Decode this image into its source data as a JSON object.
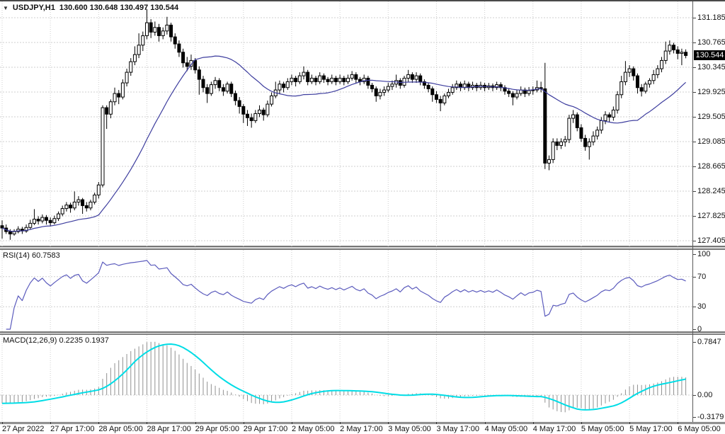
{
  "window": {
    "symbol_title": "USDJPY,H1",
    "ohlc_readout": "130.600 130.648 130.497 130.544"
  },
  "colors": {
    "background": "#ffffff",
    "grid": "#cfcfcf",
    "candle_outline": "#000000",
    "bull_fill": "#ffffff",
    "bear_fill": "#000000",
    "ma_line": "#3d3d9e",
    "rsi_line": "#5b5bbd",
    "macd_histogram": "#909090",
    "macd_signal": "#00dde6",
    "price_tag_bg": "#000000",
    "price_tag_text": "#ffffff",
    "axis_text": "#111111"
  },
  "chart_data": {
    "type": "candlestick",
    "symbol": "USDJPY",
    "timeframe": "H1",
    "last_bar": {
      "open": "130.600",
      "high": "130.648",
      "low": "130.497",
      "close": "130.544"
    },
    "price_tag": "130.544",
    "price_axis_labels": [
      "131.185",
      "130.765",
      "130.345",
      "129.925",
      "129.505",
      "129.085",
      "128.665",
      "128.245",
      "127.825",
      "127.405"
    ],
    "time_axis_labels": [
      {
        "i": 0,
        "label": "27 Apr 2022"
      },
      {
        "i": 12,
        "label": "27 Apr 17:00"
      },
      {
        "i": 24,
        "label": "28 Apr 05:00"
      },
      {
        "i": 36,
        "label": "28 Apr 17:00"
      },
      {
        "i": 48,
        "label": "29 Apr 05:00"
      },
      {
        "i": 60,
        "label": "29 Apr 17:00"
      },
      {
        "i": 72,
        "label": "2 May 05:00"
      },
      {
        "i": 84,
        "label": "2 May 17:00"
      },
      {
        "i": 96,
        "label": "3 May 05:00"
      },
      {
        "i": 108,
        "label": "3 May 17:00"
      },
      {
        "i": 120,
        "label": "4 May 05:00"
      },
      {
        "i": 132,
        "label": "4 May 17:00"
      },
      {
        "i": 144,
        "label": "5 May 05:00"
      },
      {
        "i": 156,
        "label": "5 May 17:00"
      },
      {
        "i": 168,
        "label": "6 May 05:00"
      }
    ],
    "ma": {
      "period": 24
    },
    "rsi": {
      "label": "RSI(14) 60.7583",
      "period": 14,
      "current": 60.7583,
      "axis_labels": [
        {
          "v": 100,
          "label": "100"
        },
        {
          "v": 70,
          "label": "70"
        },
        {
          "v": 30,
          "label": "30"
        },
        {
          "v": 0,
          "label": "0"
        }
      ],
      "level_lines": [
        70,
        30
      ]
    },
    "macd": {
      "label": "MACD(12,26,9) 0.2235 0.1937",
      "fast": 12,
      "slow": 26,
      "signal": 9,
      "current_macd": 0.2235,
      "current_signal": 0.1937,
      "axis_labels": [
        {
          "v": 0.7847,
          "label": "0.7847"
        },
        {
          "v": 0,
          "label": "0.00"
        },
        {
          "v": -0.3179,
          "label": "-0.3179"
        }
      ]
    },
    "candles": [
      [
        127.66,
        127.75,
        127.44,
        127.62
      ],
      [
        127.62,
        127.68,
        127.52,
        127.56
      ],
      [
        127.56,
        127.6,
        127.42,
        127.52
      ],
      [
        127.52,
        127.6,
        127.49,
        127.56
      ],
      [
        127.56,
        127.65,
        127.53,
        127.6
      ],
      [
        127.6,
        127.64,
        127.52,
        127.57
      ],
      [
        127.57,
        127.68,
        127.54,
        127.63
      ],
      [
        127.63,
        127.76,
        127.6,
        127.7
      ],
      [
        127.7,
        127.94,
        127.67,
        127.77
      ],
      [
        127.77,
        127.82,
        127.68,
        127.74
      ],
      [
        127.74,
        127.85,
        127.7,
        127.8
      ],
      [
        127.8,
        127.84,
        127.68,
        127.75
      ],
      [
        127.75,
        127.8,
        127.65,
        127.71
      ],
      [
        127.71,
        127.83,
        127.68,
        127.78
      ],
      [
        127.78,
        127.9,
        127.74,
        127.86
      ],
      [
        127.86,
        128.0,
        127.82,
        127.95
      ],
      [
        127.95,
        128.06,
        127.9,
        128.01
      ],
      [
        128.01,
        128.05,
        127.88,
        127.96
      ],
      [
        127.96,
        128.24,
        127.92,
        128.06
      ],
      [
        128.06,
        128.16,
        128.0,
        128.1
      ],
      [
        128.1,
        128.13,
        127.86,
        128.0
      ],
      [
        128.0,
        128.06,
        127.9,
        127.96
      ],
      [
        127.96,
        128.1,
        127.92,
        128.06
      ],
      [
        128.06,
        128.22,
        128.02,
        128.18
      ],
      [
        128.18,
        128.4,
        128.12,
        128.35
      ],
      [
        128.35,
        129.7,
        128.31,
        129.66
      ],
      [
        129.66,
        129.7,
        129.3,
        129.55
      ],
      [
        129.55,
        129.8,
        129.48,
        129.76
      ],
      [
        129.76,
        130.0,
        129.7,
        129.9
      ],
      [
        129.9,
        129.96,
        129.72,
        129.84
      ],
      [
        129.84,
        130.14,
        129.8,
        130.08
      ],
      [
        130.08,
        130.32,
        130.02,
        130.26
      ],
      [
        130.26,
        130.5,
        130.2,
        130.44
      ],
      [
        130.44,
        130.7,
        130.38,
        130.56
      ],
      [
        130.56,
        130.92,
        130.5,
        130.72
      ],
      [
        130.72,
        130.95,
        130.62,
        130.88
      ],
      [
        130.88,
        131.33,
        130.82,
        131.1
      ],
      [
        131.1,
        131.16,
        130.84,
        130.94
      ],
      [
        130.94,
        131.12,
        130.88,
        131.02
      ],
      [
        131.02,
        131.08,
        130.78,
        130.88
      ],
      [
        130.88,
        131.02,
        130.82,
        130.96
      ],
      [
        130.96,
        131.2,
        130.9,
        131.06
      ],
      [
        131.06,
        131.1,
        130.78,
        130.86
      ],
      [
        130.86,
        130.92,
        130.66,
        130.74
      ],
      [
        130.74,
        130.8,
        130.52,
        130.6
      ],
      [
        130.6,
        130.66,
        130.34,
        130.42
      ],
      [
        130.42,
        130.52,
        130.28,
        130.36
      ],
      [
        130.36,
        130.56,
        130.3,
        130.46
      ],
      [
        130.46,
        130.5,
        130.24,
        130.3
      ],
      [
        130.3,
        130.36,
        129.88,
        130.14
      ],
      [
        130.14,
        130.2,
        129.92,
        130.0
      ],
      [
        130.0,
        130.06,
        129.74,
        129.9
      ],
      [
        129.9,
        130.1,
        129.86,
        130.05
      ],
      [
        130.05,
        130.18,
        129.98,
        130.12
      ],
      [
        130.12,
        130.16,
        129.94,
        130.0
      ],
      [
        130.0,
        130.06,
        129.86,
        129.94
      ],
      [
        129.94,
        130.1,
        129.9,
        130.06
      ],
      [
        130.06,
        130.1,
        129.84,
        129.9
      ],
      [
        129.9,
        129.95,
        129.7,
        129.78
      ],
      [
        129.78,
        129.84,
        129.56,
        129.68
      ],
      [
        129.68,
        129.72,
        129.4,
        129.55
      ],
      [
        129.55,
        129.62,
        129.35,
        129.49
      ],
      [
        129.49,
        129.56,
        129.32,
        129.44
      ],
      [
        129.44,
        129.62,
        129.4,
        129.56
      ],
      [
        129.56,
        129.7,
        129.5,
        129.62
      ],
      [
        129.62,
        129.66,
        129.44,
        129.54
      ],
      [
        129.54,
        129.78,
        129.5,
        129.72
      ],
      [
        129.72,
        129.92,
        129.68,
        129.86
      ],
      [
        129.86,
        130.1,
        129.82,
        129.96
      ],
      [
        129.96,
        130.12,
        129.9,
        130.06
      ],
      [
        130.06,
        130.1,
        129.92,
        130.0
      ],
      [
        130.0,
        130.16,
        129.96,
        130.1
      ],
      [
        130.1,
        130.22,
        130.04,
        130.16
      ],
      [
        130.16,
        130.2,
        130.02,
        130.1
      ],
      [
        130.1,
        130.26,
        130.06,
        130.2
      ],
      [
        130.2,
        130.36,
        130.14,
        130.26
      ],
      [
        130.26,
        130.3,
        130.04,
        130.1
      ],
      [
        130.1,
        130.22,
        130.06,
        130.16
      ],
      [
        130.16,
        130.2,
        130.04,
        130.1
      ],
      [
        130.1,
        130.26,
        130.06,
        130.2
      ],
      [
        130.2,
        130.24,
        130.08,
        130.14
      ],
      [
        130.14,
        130.18,
        130.04,
        130.1
      ],
      [
        130.1,
        130.22,
        130.06,
        130.16
      ],
      [
        130.16,
        130.2,
        130.04,
        130.1
      ],
      [
        130.1,
        130.22,
        130.06,
        130.16
      ],
      [
        130.16,
        130.2,
        130.04,
        130.1
      ],
      [
        130.1,
        130.22,
        130.06,
        130.16
      ],
      [
        130.16,
        130.28,
        130.12,
        130.22
      ],
      [
        130.22,
        130.26,
        130.08,
        130.14
      ],
      [
        130.14,
        130.18,
        130.04,
        130.1
      ],
      [
        130.1,
        130.22,
        130.06,
        130.16
      ],
      [
        130.16,
        130.2,
        129.98,
        130.04
      ],
      [
        130.04,
        130.08,
        129.92,
        129.98
      ],
      [
        129.98,
        130.02,
        129.76,
        129.86
      ],
      [
        129.86,
        129.98,
        129.8,
        129.92
      ],
      [
        129.92,
        130.02,
        129.86,
        129.96
      ],
      [
        129.96,
        130.08,
        129.92,
        130.02
      ],
      [
        130.02,
        130.12,
        129.96,
        130.06
      ],
      [
        130.06,
        130.22,
        130.0,
        130.12
      ],
      [
        130.12,
        130.16,
        129.98,
        130.04
      ],
      [
        130.04,
        130.2,
        130.0,
        130.16
      ],
      [
        130.16,
        130.3,
        130.1,
        130.22
      ],
      [
        130.22,
        130.26,
        130.08,
        130.14
      ],
      [
        130.14,
        130.26,
        130.08,
        130.2
      ],
      [
        130.2,
        130.24,
        130.04,
        130.1
      ],
      [
        130.1,
        130.14,
        129.98,
        130.04
      ],
      [
        130.04,
        130.08,
        129.92,
        129.98
      ],
      [
        129.98,
        130.02,
        129.76,
        129.88
      ],
      [
        129.88,
        129.94,
        129.74,
        129.8
      ],
      [
        129.8,
        129.86,
        129.6,
        129.74
      ],
      [
        129.74,
        129.9,
        129.7,
        129.86
      ],
      [
        129.86,
        129.98,
        129.82,
        129.92
      ],
      [
        129.92,
        130.06,
        129.88,
        130.0
      ],
      [
        130.0,
        130.12,
        129.96,
        130.06
      ],
      [
        130.06,
        130.1,
        129.94,
        130.0
      ],
      [
        130.0,
        130.12,
        129.96,
        130.06
      ],
      [
        130.06,
        130.1,
        129.94,
        130.0
      ],
      [
        130.0,
        130.1,
        129.96,
        130.04
      ],
      [
        130.04,
        130.08,
        129.94,
        130.0
      ],
      [
        130.0,
        130.1,
        129.96,
        130.04
      ],
      [
        130.04,
        130.08,
        129.94,
        130.0
      ],
      [
        130.0,
        130.08,
        129.96,
        130.03
      ],
      [
        130.03,
        130.07,
        129.94,
        130.0
      ],
      [
        130.0,
        130.1,
        129.96,
        130.05
      ],
      [
        130.05,
        130.09,
        129.94,
        130.0
      ],
      [
        130.0,
        130.04,
        129.88,
        129.94
      ],
      [
        129.94,
        129.98,
        129.84,
        129.9
      ],
      [
        129.9,
        129.94,
        129.7,
        129.84
      ],
      [
        129.84,
        129.96,
        129.8,
        129.9
      ],
      [
        129.9,
        130.02,
        129.86,
        129.96
      ],
      [
        129.96,
        130.0,
        129.84,
        129.9
      ],
      [
        129.9,
        130.01,
        129.86,
        129.95
      ],
      [
        129.95,
        130.02,
        129.88,
        129.96
      ],
      [
        129.96,
        130.12,
        129.92,
        130.0
      ],
      [
        130.0,
        130.1,
        129.92,
        129.98
      ],
      [
        129.98,
        130.42,
        128.62,
        128.72
      ],
      [
        128.72,
        128.85,
        128.6,
        128.78
      ],
      [
        128.78,
        129.14,
        128.72,
        129.08
      ],
      [
        129.08,
        129.14,
        128.94,
        129.02
      ],
      [
        129.02,
        129.14,
        128.96,
        129.08
      ],
      [
        129.08,
        129.18,
        129.0,
        129.12
      ],
      [
        129.12,
        129.54,
        129.06,
        129.48
      ],
      [
        129.48,
        129.62,
        129.4,
        129.54
      ],
      [
        129.54,
        129.58,
        129.26,
        129.32
      ],
      [
        129.32,
        129.38,
        129.08,
        129.14
      ],
      [
        129.14,
        129.2,
        128.93,
        129.0
      ],
      [
        129.0,
        129.14,
        128.78,
        129.08
      ],
      [
        129.08,
        129.26,
        129.02,
        129.18
      ],
      [
        129.18,
        129.34,
        129.12,
        129.28
      ],
      [
        129.28,
        129.5,
        129.22,
        129.44
      ],
      [
        129.44,
        129.6,
        129.38,
        129.54
      ],
      [
        129.54,
        129.58,
        129.42,
        129.5
      ],
      [
        129.5,
        129.68,
        129.44,
        129.62
      ],
      [
        129.62,
        129.94,
        129.56,
        129.88
      ],
      [
        129.88,
        130.2,
        129.82,
        130.1
      ],
      [
        130.1,
        130.45,
        130.04,
        130.26
      ],
      [
        130.26,
        130.38,
        130.18,
        130.32
      ],
      [
        130.32,
        130.36,
        130.12,
        130.2
      ],
      [
        130.2,
        130.24,
        129.9,
        130.0
      ],
      [
        130.0,
        130.06,
        129.85,
        129.94
      ],
      [
        129.94,
        130.1,
        129.9,
        130.06
      ],
      [
        130.06,
        130.16,
        130.0,
        130.12
      ],
      [
        130.12,
        130.3,
        130.06,
        130.22
      ],
      [
        130.22,
        130.38,
        130.16,
        130.32
      ],
      [
        130.32,
        130.52,
        130.26,
        130.46
      ],
      [
        130.46,
        130.78,
        130.4,
        130.62
      ],
      [
        130.62,
        130.8,
        130.56,
        130.72
      ],
      [
        130.72,
        130.76,
        130.58,
        130.64
      ],
      [
        130.64,
        130.7,
        130.48,
        130.58
      ],
      [
        130.58,
        130.66,
        130.38,
        130.6
      ],
      [
        130.6,
        130.648,
        130.497,
        130.544
      ]
    ]
  }
}
